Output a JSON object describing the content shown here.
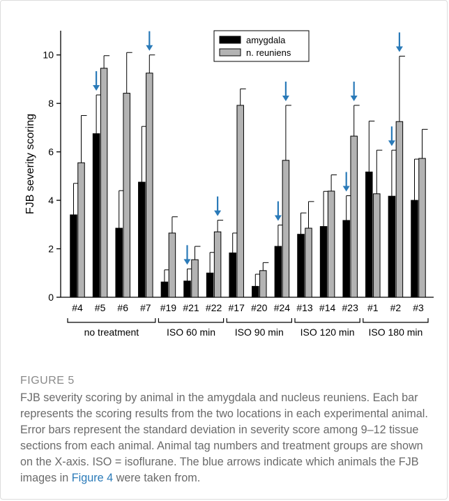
{
  "chart_data": {
    "type": "bar",
    "ylabel": "FJB severity scoring",
    "ylim": [
      0,
      11
    ],
    "yticks": [
      0,
      2,
      4,
      6,
      8,
      10
    ],
    "grid": false,
    "legend_position": "top-center",
    "categories": [
      "#4",
      "#5",
      "#6",
      "#7",
      "#19",
      "#21",
      "#22",
      "#17",
      "#20",
      "#24",
      "#13",
      "#14",
      "#23",
      "#1",
      "#2",
      "#3"
    ],
    "groups": [
      {
        "label": "no treatment",
        "categories": [
          "#4",
          "#5",
          "#6",
          "#7"
        ]
      },
      {
        "label": "ISO 60 min",
        "categories": [
          "#19",
          "#21",
          "#22"
        ]
      },
      {
        "label": "ISO 90 min",
        "categories": [
          "#17",
          "#20",
          "#24"
        ]
      },
      {
        "label": "ISO 120 min",
        "categories": [
          "#13",
          "#14",
          "#23"
        ]
      },
      {
        "label": "ISO 180 min",
        "categories": [
          "#1",
          "#2",
          "#3"
        ]
      }
    ],
    "series": [
      {
        "name": "amygdala",
        "color": "#000000",
        "values": [
          3.4,
          6.75,
          2.85,
          4.75,
          0.63,
          0.67,
          1.0,
          1.83,
          0.45,
          2.1,
          2.6,
          2.92,
          3.17,
          5.17,
          4.17,
          4.0
        ],
        "error": [
          1.3,
          1.6,
          1.55,
          2.3,
          0.5,
          0.5,
          0.85,
          0.82,
          0.5,
          0.88,
          0.88,
          1.45,
          1.02,
          2.1,
          1.9,
          1.7
        ]
      },
      {
        "name": "n. reuniens",
        "color": "#b3b3b3",
        "values": [
          5.55,
          9.45,
          8.42,
          9.25,
          2.65,
          1.55,
          2.7,
          7.92,
          1.1,
          5.65,
          2.85,
          4.38,
          6.65,
          4.27,
          7.25,
          5.73
        ],
        "error": [
          1.95,
          0.52,
          1.68,
          0.75,
          0.67,
          0.55,
          0.48,
          0.68,
          0.33,
          2.27,
          1.1,
          0.67,
          1.27,
          1.8,
          2.7,
          1.2
        ]
      }
    ],
    "annotations": {
      "arrow_color": "#2a7ab8",
      "arrows": [
        {
          "category": "#5",
          "series": "amygdala"
        },
        {
          "category": "#7",
          "series": "n. reuniens"
        },
        {
          "category": "#21",
          "series": "amygdala"
        },
        {
          "category": "#22",
          "series": "n. reuniens"
        },
        {
          "category": "#24",
          "series": "amygdala"
        },
        {
          "category": "#24",
          "series": "n. reuniens"
        },
        {
          "category": "#23",
          "series": "amygdala"
        },
        {
          "category": "#23",
          "series": "n. reuniens"
        },
        {
          "category": "#2",
          "series": "amygdala"
        },
        {
          "category": "#2",
          "series": "n. reuniens"
        }
      ]
    }
  },
  "caption": {
    "label": "FIGURE 5",
    "text_before_link": "FJB severity scoring by animal in the amygdala and nucleus reuniens. Each bar represents the scoring results from the two locations in each experimental animal. Error bars represent the standard deviation in severity score among 9–12 tissue sections from each animal. Animal tag numbers and treatment groups are shown on the X-axis. ISO = isoflurane. The blue arrows indicate which animals the FJB images in ",
    "link_text": "Figure 4",
    "text_after_link": " were taken from."
  }
}
